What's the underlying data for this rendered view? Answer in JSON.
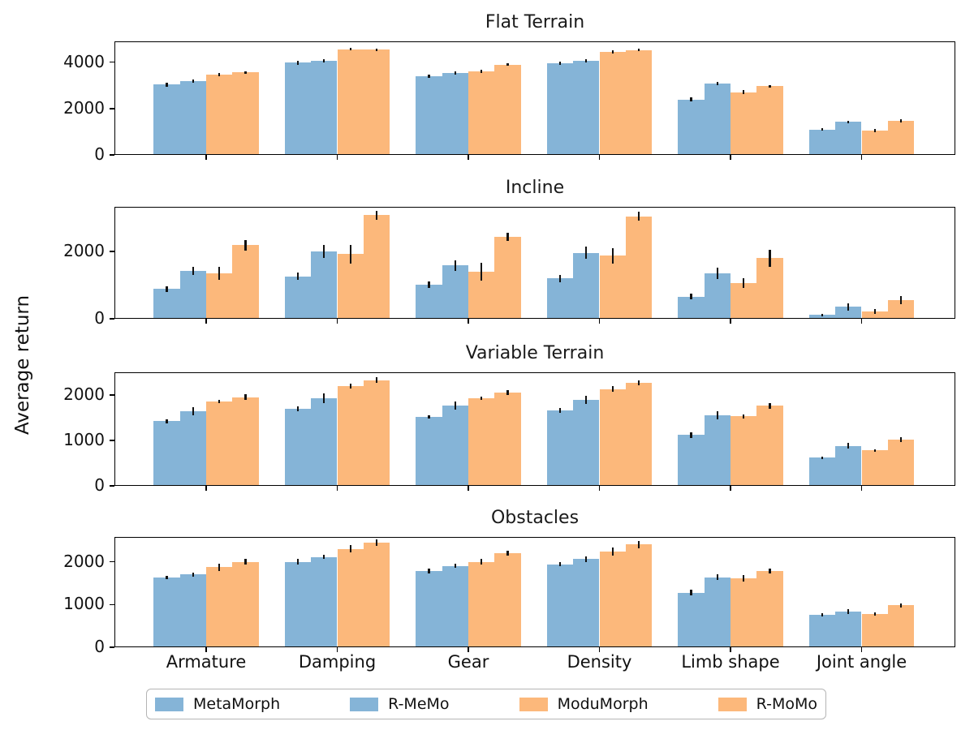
{
  "figure": {
    "ylabel": "Average return"
  },
  "legend": {
    "position": "bottom",
    "items": [
      {
        "label": "MetaMorph",
        "color": "#85B4D7",
        "hatch": true
      },
      {
        "label": "R-MeMo",
        "color": "#85B4D7",
        "hatch": false
      },
      {
        "label": "ModuMorph",
        "color": "#FCB87B",
        "hatch": true
      },
      {
        "label": "R-MoMo",
        "color": "#FCB87B",
        "hatch": false
      }
    ]
  },
  "chart_data": [
    {
      "type": "bar",
      "title": "Flat Terrain",
      "xlabel": "",
      "ylabel": "Average return",
      "grid": false,
      "categories": [
        "Armature",
        "Damping",
        "Gear",
        "Density",
        "Limb shape",
        "Joint angle"
      ],
      "ylim": [
        0,
        4900
      ],
      "yticks": [
        0,
        2000,
        4000
      ],
      "series": [
        {
          "name": "MetaMorph",
          "values": [
            3030,
            3980,
            3380,
            3960,
            2390,
            1100
          ],
          "errors": [
            90,
            80,
            70,
            80,
            90,
            60
          ]
        },
        {
          "name": "R-MeMo",
          "values": [
            3190,
            4060,
            3540,
            4060,
            3090,
            1420
          ],
          "errors": [
            60,
            70,
            60,
            70,
            70,
            60
          ]
        },
        {
          "name": "ModuMorph",
          "values": [
            3470,
            4560,
            3590,
            4440,
            2700,
            1050
          ],
          "errors": [
            60,
            60,
            70,
            60,
            90,
            70
          ]
        },
        {
          "name": "R-MoMo",
          "values": [
            3560,
            4540,
            3890,
            4520,
            2960,
            1470
          ],
          "errors": [
            60,
            50,
            50,
            50,
            60,
            60
          ]
        }
      ]
    },
    {
      "type": "bar",
      "title": "Incline",
      "xlabel": "",
      "ylabel": "Average return",
      "grid": false,
      "categories": [
        "Armature",
        "Damping",
        "Gear",
        "Density",
        "Limb shape",
        "Joint angle"
      ],
      "ylim": [
        0,
        3320
      ],
      "yticks": [
        0,
        2000
      ],
      "series": [
        {
          "name": "MetaMorph",
          "values": [
            880,
            1260,
            1010,
            1200,
            660,
            110
          ],
          "errors": [
            80,
            100,
            100,
            110,
            90,
            40
          ]
        },
        {
          "name": "R-MeMo",
          "values": [
            1420,
            2000,
            1580,
            1950,
            1350,
            350
          ],
          "errors": [
            120,
            200,
            160,
            180,
            170,
            100
          ]
        },
        {
          "name": "ModuMorph",
          "values": [
            1350,
            1920,
            1400,
            1870,
            1060,
            220
          ],
          "errors": [
            200,
            280,
            260,
            230,
            140,
            70
          ]
        },
        {
          "name": "R-MoMo",
          "values": [
            2180,
            3070,
            2430,
            3040,
            1800,
            560
          ],
          "errors": [
            160,
            140,
            120,
            140,
            250,
            120
          ]
        }
      ]
    },
    {
      "type": "bar",
      "title": "Variable Terrain",
      "xlabel": "",
      "ylabel": "Average return",
      "grid": false,
      "categories": [
        "Armature",
        "Damping",
        "Gear",
        "Density",
        "Limb shape",
        "Joint angle"
      ],
      "ylim": [
        0,
        2500
      ],
      "yticks": [
        0,
        1000,
        2000
      ],
      "series": [
        {
          "name": "MetaMorph",
          "values": [
            1420,
            1700,
            1520,
            1660,
            1120,
            620
          ],
          "errors": [
            40,
            50,
            40,
            60,
            60,
            30
          ]
        },
        {
          "name": "R-MeMo",
          "values": [
            1640,
            1930,
            1760,
            1900,
            1560,
            880
          ],
          "errors": [
            90,
            110,
            90,
            90,
            90,
            60
          ]
        },
        {
          "name": "ModuMorph",
          "values": [
            1860,
            2200,
            1930,
            2130,
            1530,
            780
          ],
          "errors": [
            30,
            50,
            40,
            60,
            40,
            30
          ]
        },
        {
          "name": "R-MoMo",
          "values": [
            1950,
            2330,
            2050,
            2270,
            1760,
            1020
          ],
          "errors": [
            60,
            60,
            50,
            60,
            60,
            50
          ]
        }
      ]
    },
    {
      "type": "bar",
      "title": "Obstacles",
      "xlabel": "",
      "ylabel": "Average return",
      "grid": false,
      "categories": [
        "Armature",
        "Damping",
        "Gear",
        "Density",
        "Limb shape",
        "Joint angle"
      ],
      "ylim": [
        0,
        2580
      ],
      "yticks": [
        0,
        1000,
        2000
      ],
      "series": [
        {
          "name": "MetaMorph",
          "values": [
            1630,
            2000,
            1780,
            1940,
            1280,
            760
          ],
          "errors": [
            40,
            60,
            60,
            50,
            70,
            40
          ]
        },
        {
          "name": "R-MeMo",
          "values": [
            1700,
            2110,
            1900,
            2060,
            1640,
            840
          ],
          "errors": [
            50,
            50,
            50,
            60,
            60,
            60
          ]
        },
        {
          "name": "ModuMorph",
          "values": [
            1870,
            2300,
            2000,
            2240,
            1610,
            780
          ],
          "errors": [
            80,
            90,
            60,
            90,
            70,
            40
          ]
        },
        {
          "name": "R-MoMo",
          "values": [
            2000,
            2450,
            2200,
            2400,
            1780,
            980
          ],
          "errors": [
            60,
            70,
            60,
            80,
            60,
            50
          ]
        }
      ]
    }
  ]
}
